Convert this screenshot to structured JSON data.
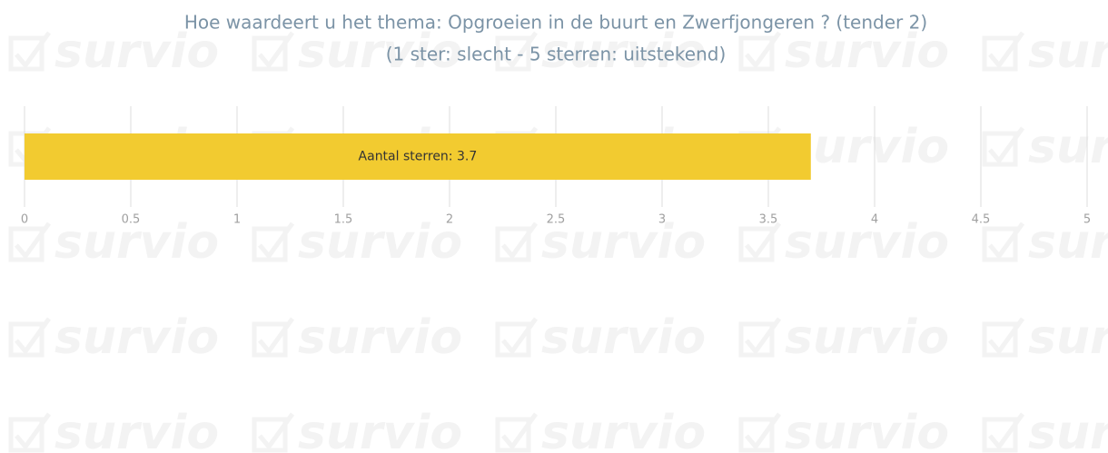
{
  "watermark": "survio",
  "chart_data": {
    "type": "hbar",
    "title": "Hoe waardeert u het thema: Opgroeien in de buurt en Zwerfjongeren ? (tender 2)",
    "subtitle": "(1 ster: slecht - 5 sterren: uitstekend)",
    "categories": [
      null
    ],
    "values": [
      3.7
    ],
    "value_labels": [
      "Aantal sterren: 3.7"
    ],
    "color": "#f2cb30",
    "xlim": [
      0,
      5
    ],
    "xticks": [
      0,
      0.5,
      1,
      1.5,
      2,
      2.5,
      3,
      3.5,
      4,
      4.5,
      5
    ],
    "grid": true
  }
}
